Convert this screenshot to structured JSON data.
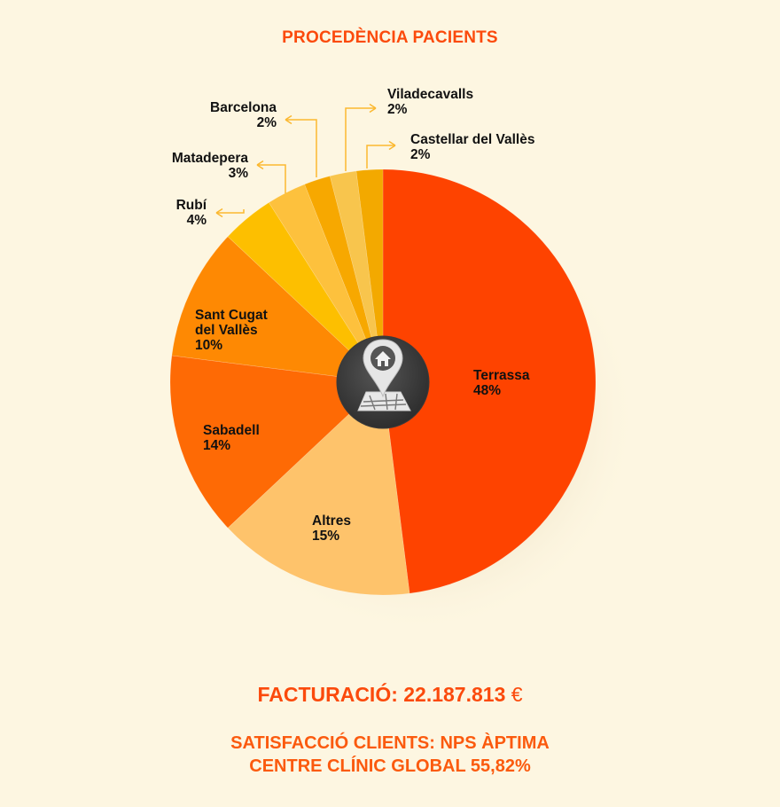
{
  "title": "PROCEDÈNCIA PACIENTS",
  "chart_data": {
    "type": "pie",
    "title": "PROCEDÈNCIA PACIENTS",
    "slices": [
      {
        "label": "Terrassa",
        "value": 48,
        "value_label": "48%",
        "color": "#fe4300"
      },
      {
        "label": "Altres",
        "value": 15,
        "value_label": "15%",
        "color": "#fec36b"
      },
      {
        "label": "Sabadell",
        "value": 14,
        "value_label": "14%",
        "color": "#fe6a05"
      },
      {
        "label": "Sant Cugat del Vallès",
        "label_lines": [
          "Sant Cugat",
          "del Vallès"
        ],
        "value": 10,
        "value_label": "10%",
        "color": "#fe8903"
      },
      {
        "label": "Rubí",
        "value": 4,
        "value_label": "4%",
        "color": "#fdbf00"
      },
      {
        "label": "Matadepera",
        "value": 3,
        "value_label": "3%",
        "color": "#fdc13d"
      },
      {
        "label": "Barcelona",
        "value": 2,
        "value_label": "2%",
        "color": "#f7a800"
      },
      {
        "label": "Viladecavalls",
        "value": 2,
        "value_label": "2%",
        "color": "#f8c54d"
      },
      {
        "label": "Castellar del Vallès",
        "value": 2,
        "value_label": "2%",
        "color": "#f3a900"
      }
    ],
    "legend": "none",
    "center_icon": "home-location-map-icon",
    "callout_color": "#fbb830"
  },
  "facturacio": {
    "label": "FACTURACIÓ: 22.187.813",
    "currency": "€"
  },
  "nps": {
    "line1": "SATISFACCIÓ CLIENTS: NPS ÀPTIMA",
    "line2": "CENTRE CLÍNIC GLOBAL 55,82%"
  }
}
